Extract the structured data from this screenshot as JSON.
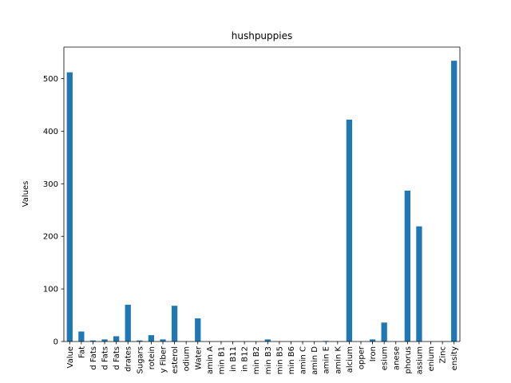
{
  "chart_data": {
    "type": "bar",
    "title": "hushpuppies",
    "xlabel": "",
    "ylabel": "Values",
    "ylim": [
      0,
      560
    ],
    "yticks": [
      0,
      100,
      200,
      300,
      400,
      500
    ],
    "legend": "none",
    "grid": false,
    "bar_color": "#1f77b4",
    "categories": [
      "Value",
      "Fat",
      "d Fats",
      "d Fats",
      "d Fats",
      "drates",
      "Sugars",
      "rotein",
      "y Fiber",
      "esterol",
      "odium",
      "Water",
      "amin A",
      "min B1",
      "in B11",
      "in B12",
      "min B2",
      "min B3",
      "min B5",
      "min B6",
      "amin C",
      "amin D",
      "amin E",
      "amin K",
      "alcium",
      "opper",
      "Iron",
      "esium",
      "anese",
      "phorus",
      "assium",
      "enium",
      "Zinc",
      "ensity"
    ],
    "values": [
      512,
      19,
      2,
      4,
      10,
      70,
      2,
      12,
      4,
      68,
      0,
      44,
      0,
      0,
      0,
      0,
      0,
      4,
      0,
      0,
      0,
      0,
      1,
      0,
      422,
      0,
      4,
      36,
      0,
      287,
      219,
      0,
      0,
      534
    ]
  }
}
